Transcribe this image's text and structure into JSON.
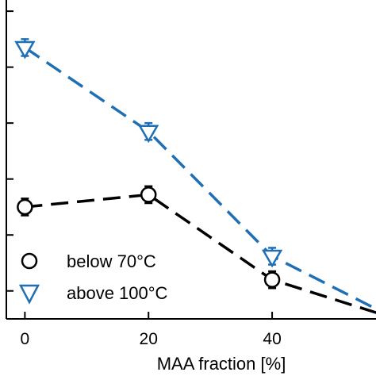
{
  "chart_data": {
    "type": "line",
    "title": "",
    "xlabel": "MAA fraction [%]",
    "ylabel": "",
    "xlim": [
      -3,
      56.8
    ],
    "ylim": [
      -0.5,
      5.2
    ],
    "x_ticks": [
      0,
      20,
      40
    ],
    "x_tick_labels": [
      "0",
      "20",
      "40"
    ],
    "y_ticks": [
      0,
      1,
      2,
      3,
      4,
      5
    ],
    "grid": false,
    "legend_position": "bottom-left",
    "series": [
      {
        "name": "below 70°C",
        "marker": "circle",
        "color": "#000000",
        "x": [
          0,
          20,
          40,
          60
        ],
        "y": [
          1.5,
          1.72,
          0.2,
          -0.5
        ],
        "yerr": [
          0.15,
          0.15,
          0.15,
          0.15
        ]
      },
      {
        "name": "above 100°C",
        "marker": "triangle-down",
        "color": "#1f6fb5",
        "x": [
          0,
          20,
          40,
          60
        ],
        "y": [
          4.35,
          2.85,
          0.62,
          -0.5
        ],
        "yerr": [
          0.15,
          0.15,
          0.15,
          0.15
        ]
      }
    ]
  }
}
